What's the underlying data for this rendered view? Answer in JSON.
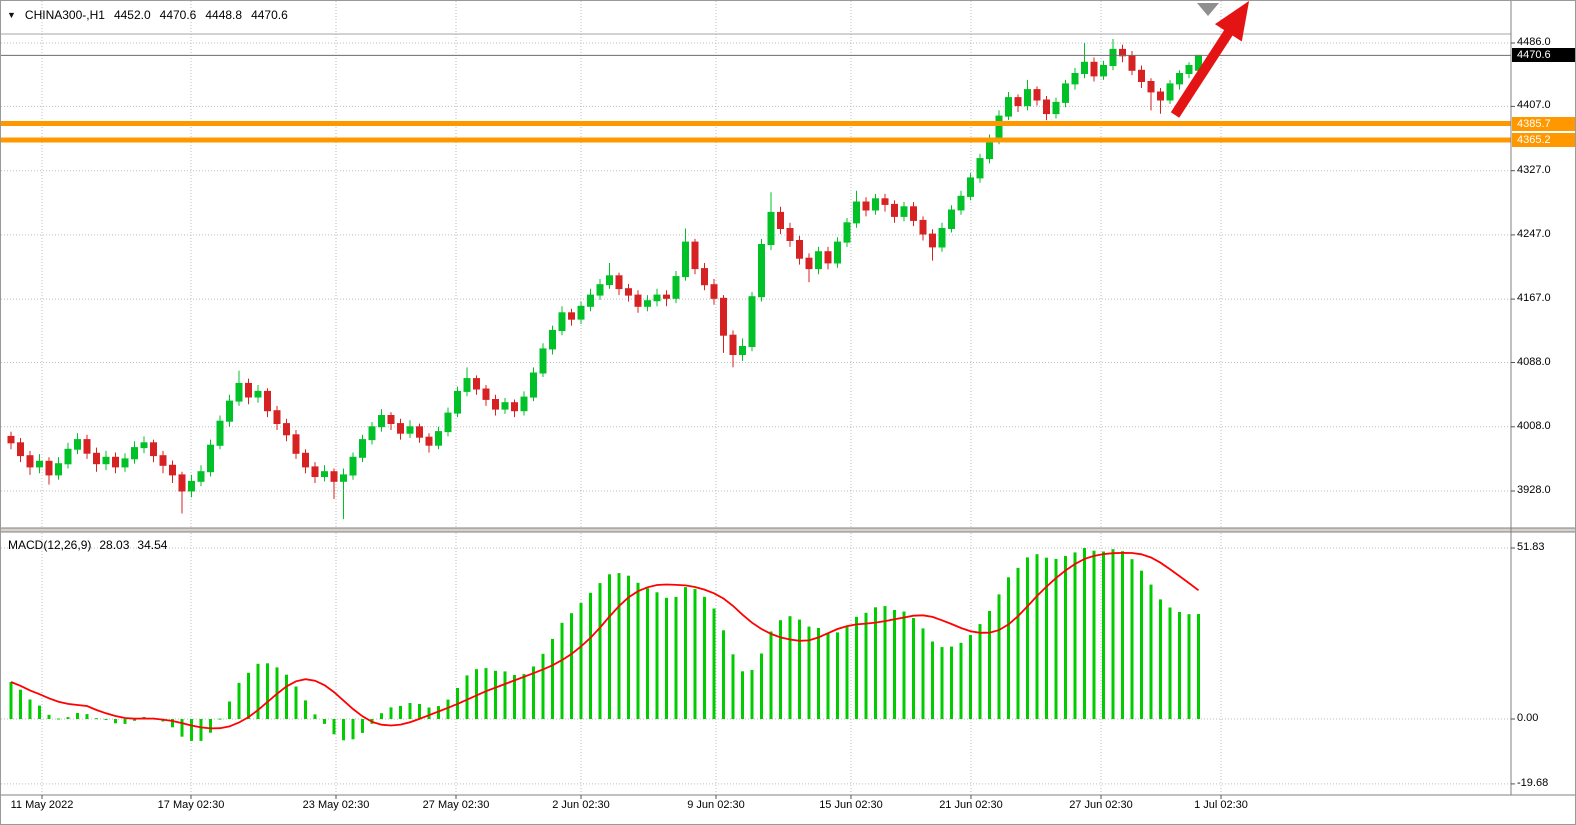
{
  "header": {
    "symbol": "CHINA300-,H1",
    "open": "4452.0",
    "high": "4470.6",
    "low": "4448.8",
    "close": "4470.6"
  },
  "price_scale": {
    "ticks": [
      "4486.0",
      "4407.0",
      "4327.0",
      "4247.0",
      "4167.0",
      "4088.0",
      "4008.0",
      "3928.0"
    ],
    "current": {
      "label": "4470.6",
      "price": 4470.6
    },
    "levels": [
      {
        "label": "4385.7",
        "price": 4385.7
      },
      {
        "label": "4365.2",
        "price": 4365.2
      }
    ]
  },
  "macd_panel": {
    "label": "MACD(12,26,9)",
    "main_value": "28.03",
    "signal_value": "34.54",
    "scale": [
      {
        "label": "51.83",
        "value": 51.83
      },
      {
        "label": "0.00",
        "value": 0
      },
      {
        "label": "-19.68",
        "value": -19.68
      }
    ]
  },
  "time_axis": [
    "11 May 2022",
    "17 May 02:30",
    "23 May 02:30",
    "27 May 02:30",
    "2 Jun 02:30",
    "9 Jun 02:30",
    "15 Jun 02:30",
    "21 Jun 02:30",
    "27 Jun 02:30",
    "1 Jul 02:30"
  ],
  "chart_data": {
    "type": "candlestick",
    "title": "CHINA300- H1 with MACD(12,26,9)",
    "price_ticks": [
      4486.0,
      4407.0,
      4327.0,
      4247.0,
      4167.0,
      4088.0,
      4008.0,
      3928.0
    ],
    "levels": [
      4385.7,
      4365.2
    ],
    "current_price": 4470.6,
    "last_ohlc": [
      4452.0,
      4470.6,
      4448.8,
      4470.6
    ],
    "x_labels": [
      "11 May 2022",
      "17 May 02:30",
      "23 May 02:30",
      "27 May 02:30",
      "2 Jun 02:30",
      "9 Jun 02:30",
      "15 Jun 02:30",
      "21 Jun 02:30",
      "27 Jun 02:30",
      "1 Jul 02:30"
    ],
    "candles_ohlc": [
      [
        3996,
        4002,
        3980,
        3988
      ],
      [
        3988,
        3994,
        3964,
        3972
      ],
      [
        3972,
        3978,
        3948,
        3958
      ],
      [
        3958,
        3974,
        3950,
        3965
      ],
      [
        3965,
        3970,
        3936,
        3948
      ],
      [
        3948,
        3970,
        3942,
        3962
      ],
      [
        3962,
        3988,
        3956,
        3980
      ],
      [
        3980,
        4000,
        3974,
        3992
      ],
      [
        3992,
        3998,
        3968,
        3975
      ],
      [
        3975,
        3982,
        3952,
        3962
      ],
      [
        3962,
        3978,
        3954,
        3970
      ],
      [
        3970,
        3976,
        3950,
        3958
      ],
      [
        3958,
        3975,
        3952,
        3968
      ],
      [
        3968,
        3990,
        3962,
        3982
      ],
      [
        3982,
        3996,
        3975,
        3988
      ],
      [
        3988,
        3992,
        3964,
        3972
      ],
      [
        3972,
        3978,
        3950,
        3960
      ],
      [
        3960,
        3966,
        3938,
        3948
      ],
      [
        3948,
        3952,
        3900,
        3928
      ],
      [
        3928,
        3948,
        3920,
        3940
      ],
      [
        3940,
        3960,
        3934,
        3952
      ],
      [
        3952,
        3992,
        3946,
        3985
      ],
      [
        3985,
        4022,
        3980,
        4015
      ],
      [
        4015,
        4048,
        4008,
        4040
      ],
      [
        4040,
        4078,
        4034,
        4062
      ],
      [
        4062,
        4068,
        4036,
        4045
      ],
      [
        4045,
        4060,
        4038,
        4052
      ],
      [
        4052,
        4056,
        4020,
        4028
      ],
      [
        4028,
        4034,
        4004,
        4012
      ],
      [
        4012,
        4018,
        3990,
        3998
      ],
      [
        3998,
        4004,
        3968,
        3975
      ],
      [
        3975,
        3980,
        3950,
        3958
      ],
      [
        3958,
        3964,
        3938,
        3946
      ],
      [
        3946,
        3960,
        3940,
        3952
      ],
      [
        3952,
        3956,
        3918,
        3940
      ],
      [
        3940,
        3956,
        3893,
        3948
      ],
      [
        3948,
        3976,
        3942,
        3970
      ],
      [
        3970,
        3998,
        3964,
        3992
      ],
      [
        3992,
        4014,
        3986,
        4008
      ],
      [
        4008,
        4030,
        4002,
        4022
      ],
      [
        4022,
        4026,
        4004,
        4012
      ],
      [
        4012,
        4018,
        3992,
        4000
      ],
      [
        4000,
        4016,
        3994,
        4008
      ],
      [
        4008,
        4012,
        3988,
        3995
      ],
      [
        3995,
        4000,
        3976,
        3985
      ],
      [
        3985,
        4008,
        3980,
        4002
      ],
      [
        4002,
        4032,
        3996,
        4025
      ],
      [
        4025,
        4058,
        4020,
        4052
      ],
      [
        4052,
        4082,
        4046,
        4068
      ],
      [
        4068,
        4072,
        4048,
        4055
      ],
      [
        4055,
        4060,
        4034,
        4042
      ],
      [
        4042,
        4048,
        4022,
        4030
      ],
      [
        4030,
        4044,
        4024,
        4038
      ],
      [
        4038,
        4042,
        4020,
        4028
      ],
      [
        4028,
        4052,
        4022,
        4045
      ],
      [
        4045,
        4082,
        4040,
        4075
      ],
      [
        4075,
        4112,
        4070,
        4105
      ],
      [
        4105,
        4134,
        4098,
        4128
      ],
      [
        4128,
        4158,
        4122,
        4150
      ],
      [
        4150,
        4155,
        4134,
        4142
      ],
      [
        4142,
        4164,
        4136,
        4158
      ],
      [
        4158,
        4180,
        4152,
        4172
      ],
      [
        4172,
        4192,
        4166,
        4185
      ],
      [
        4185,
        4212,
        4180,
        4196
      ],
      [
        4196,
        4200,
        4172,
        4180
      ],
      [
        4180,
        4186,
        4164,
        4172
      ],
      [
        4172,
        4178,
        4150,
        4158
      ],
      [
        4158,
        4172,
        4152,
        4165
      ],
      [
        4165,
        4180,
        4158,
        4172
      ],
      [
        4172,
        4178,
        4158,
        4168
      ],
      [
        4168,
        4202,
        4162,
        4195
      ],
      [
        4195,
        4255,
        4190,
        4238
      ],
      [
        4238,
        4242,
        4198,
        4205
      ],
      [
        4205,
        4212,
        4178,
        4185
      ],
      [
        4185,
        4192,
        4160,
        4168
      ],
      [
        4168,
        4172,
        4100,
        4122
      ],
      [
        4122,
        4128,
        4082,
        4098
      ],
      [
        4098,
        4118,
        4090,
        4108
      ],
      [
        4108,
        4176,
        4102,
        4170
      ],
      [
        4170,
        4242,
        4164,
        4235
      ],
      [
        4235,
        4300,
        4228,
        4275
      ],
      [
        4275,
        4282,
        4248,
        4255
      ],
      [
        4255,
        4262,
        4232,
        4240
      ],
      [
        4240,
        4246,
        4210,
        4218
      ],
      [
        4218,
        4224,
        4188,
        4205
      ],
      [
        4205,
        4232,
        4198,
        4226
      ],
      [
        4226,
        4232,
        4204,
        4212
      ],
      [
        4212,
        4244,
        4206,
        4238
      ],
      [
        4238,
        4268,
        4232,
        4262
      ],
      [
        4262,
        4302,
        4256,
        4288
      ],
      [
        4288,
        4294,
        4270,
        4278
      ],
      [
        4278,
        4298,
        4272,
        4292
      ],
      [
        4292,
        4298,
        4276,
        4285
      ],
      [
        4285,
        4290,
        4262,
        4270
      ],
      [
        4270,
        4288,
        4264,
        4282
      ],
      [
        4282,
        4288,
        4258,
        4265
      ],
      [
        4265,
        4270,
        4240,
        4248
      ],
      [
        4248,
        4254,
        4215,
        4232
      ],
      [
        4232,
        4262,
        4226,
        4255
      ],
      [
        4255,
        4284,
        4250,
        4278
      ],
      [
        4278,
        4302,
        4272,
        4295
      ],
      [
        4295,
        4324,
        4290,
        4318
      ],
      [
        4318,
        4348,
        4312,
        4342
      ],
      [
        4342,
        4372,
        4336,
        4365
      ],
      [
        4365,
        4402,
        4360,
        4395
      ],
      [
        4395,
        4425,
        4390,
        4418
      ],
      [
        4418,
        4422,
        4400,
        4408
      ],
      [
        4408,
        4440,
        4402,
        4428
      ],
      [
        4428,
        4432,
        4408,
        4415
      ],
      [
        4415,
        4420,
        4390,
        4398
      ],
      [
        4398,
        4418,
        4392,
        4412
      ],
      [
        4412,
        4440,
        4406,
        4435
      ],
      [
        4435,
        4455,
        4428,
        4448
      ],
      [
        4448,
        4486,
        4442,
        4462
      ],
      [
        4462,
        4468,
        4438,
        4445
      ],
      [
        4445,
        4464,
        4440,
        4458
      ],
      [
        4458,
        4491,
        4452,
        4478
      ],
      [
        4478,
        4484,
        4462,
        4470
      ],
      [
        4470,
        4476,
        4446,
        4452
      ],
      [
        4452,
        4458,
        4430,
        4438
      ],
      [
        4438,
        4442,
        4402,
        4425
      ],
      [
        4425,
        4430,
        4398,
        4415
      ],
      [
        4415,
        4440,
        4410,
        4435
      ],
      [
        4435,
        4452,
        4428,
        4448
      ],
      [
        4448,
        4462,
        4442,
        4458
      ],
      [
        4452,
        4470.6,
        4448.8,
        4470.6
      ]
    ],
    "indicator": {
      "name": "MACD",
      "params": [
        12,
        26,
        9
      ],
      "main": 28.03,
      "signal": 34.54,
      "scale_max": 51.83,
      "scale_min": -19.68,
      "histogram_color": "green",
      "signal_line_color": "red"
    },
    "annotations": {
      "trend_arrow": "red arrow pointing up-right at last bars",
      "horizontal_levels": [
        4385.7,
        4365.2
      ]
    }
  },
  "colors": {
    "bull": "#00c127",
    "bear": "#d62222",
    "hist": "#00cc00",
    "signal": "#ff0000",
    "level": "#ff9800",
    "grid": "#bdbdbd",
    "arrow": "#e51414",
    "frame": "#808080",
    "current_line": "#6b6b6b"
  }
}
